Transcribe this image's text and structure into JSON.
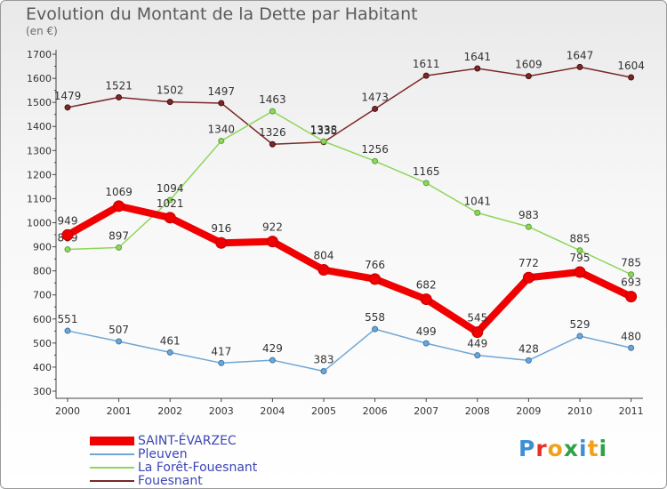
{
  "title": "Evolution du Montant de la Dette par Habitant",
  "unit": "(en €)",
  "logo": {
    "text": "Proxiti",
    "colors": [
      "#3c8fd6",
      "#e8302a",
      "#f0a11c",
      "#2aa343",
      "#3c8fd6",
      "#f0a11c",
      "#2aa343"
    ]
  },
  "chart_data": {
    "type": "line",
    "x": [
      "2000",
      "2001",
      "2002",
      "2003",
      "2004",
      "2005",
      "2006",
      "2007",
      "2008",
      "2009",
      "2010",
      "2011"
    ],
    "ylim": [
      300,
      1700
    ],
    "yticks": [
      "300",
      "400",
      "500",
      "600",
      "700",
      "800",
      "900",
      "1000",
      "1100",
      "1200",
      "1300",
      "1400",
      "1500",
      "1600",
      "1700"
    ],
    "grid": false,
    "legend_position": "bottom-left",
    "series": [
      {
        "name": "Fouesnant",
        "color": "#7a2828",
        "values": [
          1479,
          1521,
          1502,
          1497,
          1326,
          1335,
          1473,
          1611,
          1641,
          1609,
          1647,
          1604
        ]
      },
      {
        "name": "La Forêt-Fouesnant",
        "color": "#8fd65a",
        "values": [
          889,
          897,
          1094,
          1340,
          1463,
          1338,
          1256,
          1165,
          1041,
          983,
          885,
          785
        ]
      },
      {
        "name": "Pleuven",
        "color": "#6fa6d6",
        "values": [
          551,
          507,
          461,
          417,
          429,
          383,
          558,
          499,
          449,
          428,
          529,
          480
        ]
      },
      {
        "name": "SAINT-ÉVARZEC",
        "color": "#f00000",
        "values": [
          949,
          1069,
          1021,
          916,
          922,
          804,
          766,
          682,
          545,
          772,
          795,
          693
        ]
      }
    ],
    "legend_order": [
      "SAINT-ÉVARZEC",
      "Pleuven",
      "La Forêt-Fouesnant",
      "Fouesnant"
    ]
  }
}
